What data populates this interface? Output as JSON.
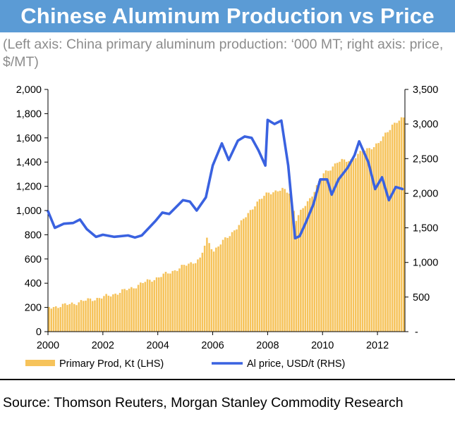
{
  "header": {
    "title": "Chinese Aluminum Production vs Price",
    "subtitle": "(Left axis: China primary aluminum production: ‘000 MT; right axis: price, $/MT)"
  },
  "footer": {
    "source": "Source: Thomson Reuters, Morgan Stanley Commodity Research"
  },
  "colors": {
    "title_bg": "#5b9bd5",
    "bars": "#f6c35b",
    "line": "#3a62e0"
  },
  "chart_data": {
    "type": "bar+line",
    "x_ticks": [
      "2000",
      "2002",
      "2004",
      "2006",
      "2008",
      "2010",
      "2012"
    ],
    "xlim": [
      "2000-01",
      "2012-12"
    ],
    "y_left": {
      "ylim": [
        0,
        2000
      ],
      "ticks": [
        "0",
        "200",
        "400",
        "600",
        "800",
        "1,000",
        "1,200",
        "1,400",
        "1,600",
        "1,800",
        "2,000"
      ]
    },
    "y_right": {
      "ylim": [
        0,
        3500
      ],
      "ticks": [
        "-",
        "500",
        "1,000",
        "1,500",
        "2,000",
        "2,500",
        "3,000",
        "3,500"
      ]
    },
    "legend": {
      "placement": "bottom"
    },
    "series": [
      {
        "name": "Primary Prod, Kt (LHS)",
        "axis": "left",
        "kind": "bar",
        "x": [
          "2000-01",
          "2000-07",
          "2001-01",
          "2001-07",
          "2002-01",
          "2002-07",
          "2003-01",
          "2003-07",
          "2004-01",
          "2004-07",
          "2005-01",
          "2005-07",
          "2005-10",
          "2006-01",
          "2006-07",
          "2007-01",
          "2007-07",
          "2008-01",
          "2008-07",
          "2008-10",
          "2009-01",
          "2009-07",
          "2010-01",
          "2010-07",
          "2011-01",
          "2011-07",
          "2012-01",
          "2012-07",
          "2012-12"
        ],
        "values": [
          200,
          215,
          240,
          265,
          285,
          320,
          360,
          410,
          450,
          500,
          550,
          600,
          760,
          670,
          780,
          900,
          1050,
          1150,
          1170,
          1150,
          930,
          1100,
          1300,
          1400,
          1420,
          1500,
          1550,
          1710,
          1760
        ]
      },
      {
        "name": "Al price, USD/t (RHS)",
        "axis": "right",
        "kind": "line",
        "x": [
          "2000-01",
          "2000-04",
          "2000-08",
          "2000-12",
          "2001-03",
          "2001-06",
          "2001-10",
          "2002-01",
          "2002-06",
          "2002-12",
          "2003-03",
          "2003-06",
          "2003-12",
          "2004-03",
          "2004-06",
          "2004-12",
          "2005-03",
          "2005-06",
          "2005-10",
          "2006-01",
          "2006-05",
          "2006-08",
          "2006-12",
          "2007-03",
          "2007-06",
          "2007-09",
          "2007-12",
          "2008-01",
          "2008-04",
          "2008-07",
          "2008-10",
          "2009-01",
          "2009-03",
          "2009-06",
          "2009-09",
          "2009-12",
          "2010-03",
          "2010-05",
          "2010-08",
          "2010-12",
          "2011-03",
          "2011-05",
          "2011-09",
          "2011-12",
          "2012-03",
          "2012-06",
          "2012-09",
          "2012-12"
        ],
        "values": [
          1740,
          1500,
          1560,
          1570,
          1620,
          1480,
          1370,
          1400,
          1370,
          1390,
          1360,
          1390,
          1600,
          1720,
          1700,
          1900,
          1880,
          1750,
          1940,
          2400,
          2720,
          2480,
          2760,
          2820,
          2800,
          2620,
          2400,
          3060,
          3000,
          3050,
          2400,
          1350,
          1380,
          1600,
          1840,
          2200,
          2200,
          1980,
          2200,
          2370,
          2550,
          2750,
          2450,
          2060,
          2230,
          1900,
          2090,
          2060
        ]
      }
    ]
  }
}
